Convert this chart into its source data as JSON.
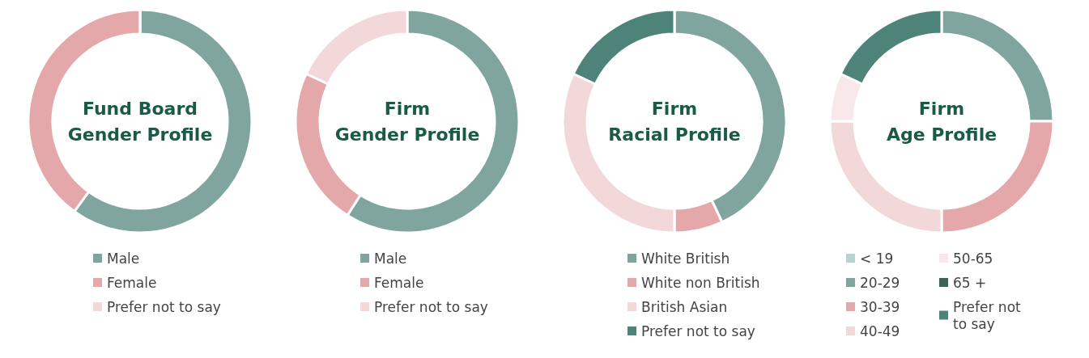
{
  "chart_data": [
    {
      "type": "donut",
      "title": "Fund Board\nGender Profile",
      "categories": [
        "Male",
        "Female",
        "Prefer not to say"
      ],
      "values": [
        60,
        40,
        0
      ],
      "colors": [
        "#7fa59e",
        "#e4a7aa",
        "#f3d8da"
      ],
      "legend": "bottom"
    },
    {
      "type": "donut",
      "title": "Firm\nGender Profile",
      "categories": [
        "Male",
        "Female",
        "Prefer not to say"
      ],
      "values": [
        59,
        23,
        18
      ],
      "colors": [
        "#7fa59e",
        "#e4a7aa",
        "#f3d8da"
      ],
      "legend": "bottom"
    },
    {
      "type": "donut",
      "title": "Firm\nRacial Profile",
      "categories": [
        "White British",
        "White non British",
        "British Asian",
        "Prefer not to say"
      ],
      "values": [
        43,
        7,
        32,
        18
      ],
      "colors": [
        "#7fa59e",
        "#e4a7aa",
        "#f3d8da",
        "#4e8379"
      ],
      "legend": "bottom"
    },
    {
      "type": "donut",
      "title": "Firm\nAge Profile",
      "categories": [
        "< 19",
        "20-29",
        "30-39",
        "40-49",
        "50-65",
        "65 +",
        "Prefer not to say"
      ],
      "values": [
        0,
        25,
        25,
        25,
        7,
        0,
        18
      ],
      "colors": [
        "#b9d2cf",
        "#7fa59e",
        "#e4a7aa",
        "#f3d8da",
        "#f9e8e9",
        "#3b6456",
        "#4e8379"
      ],
      "legend": "bottom"
    }
  ]
}
